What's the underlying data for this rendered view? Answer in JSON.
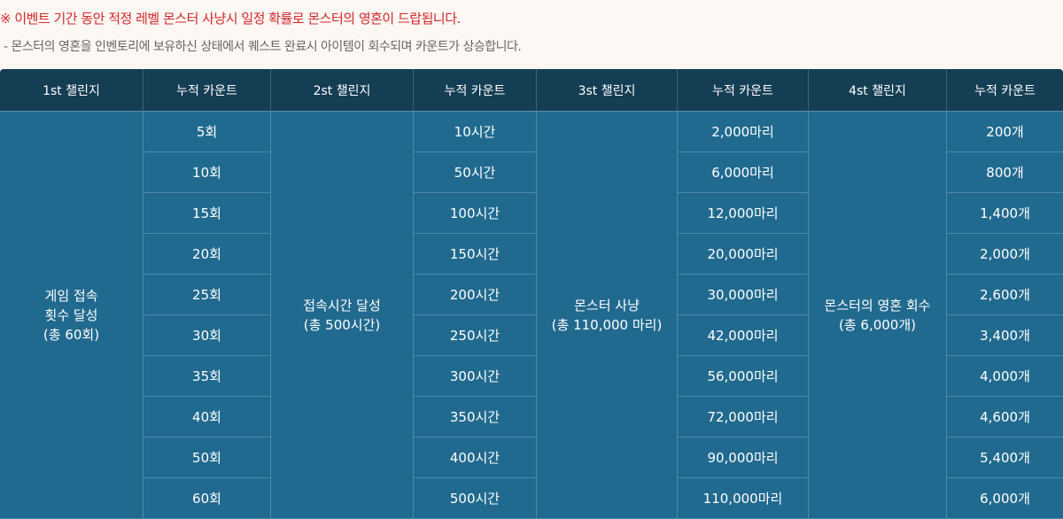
{
  "notice": "※ 이벤트 기간 동안 적정 레벨 몬스터 사냥시 일정 확률로 몬스터의 영혼이 드랍됩니다.",
  "sub_notice": "- 몬스터의 영혼을 인벤토리에 보유하신 상태에서 퀘스트 완료시 아이템이 회수되며 카운트가 상승합니다.",
  "colors": {
    "header_bg": "#143e54",
    "body_bg": "#216a8f",
    "notice": "#d4272c"
  },
  "headers": [
    "1st 챌린지",
    "누적 카운트",
    "2st 챌린지",
    "누적 카운트",
    "3st 챌린지",
    "누적 카운트",
    "4st 챌린지",
    "누적 카운트"
  ],
  "challenges": [
    {
      "title": "게임 접속\n횟수 달성\n(총 60회)",
      "counts": [
        "5회",
        "10회",
        "15회",
        "20회",
        "25회",
        "30회",
        "35회",
        "40회",
        "50회",
        "60회"
      ]
    },
    {
      "title": "접속시간 달성\n(총 500시간)",
      "counts": [
        "10시간",
        "50시간",
        "100시간",
        "150시간",
        "200시간",
        "250시간",
        "300시간",
        "350시간",
        "400시간",
        "500시간"
      ]
    },
    {
      "title": "몬스터 사냥\n(총 110,000 마리)",
      "counts": [
        "2,000마리",
        "6,000마리",
        "12,000마리",
        "20,000마리",
        "30,000마리",
        "42,000마리",
        "56,000마리",
        "72,000마리",
        "90,000마리",
        "110,000마리"
      ]
    },
    {
      "title": "몬스터의 영혼 회수\n(총 6,000개)",
      "counts": [
        "200개",
        "800개",
        "1,400개",
        "2,000개",
        "2,600개",
        "3,400개",
        "4,000개",
        "4,600개",
        "5,400개",
        "6,000개"
      ]
    }
  ]
}
